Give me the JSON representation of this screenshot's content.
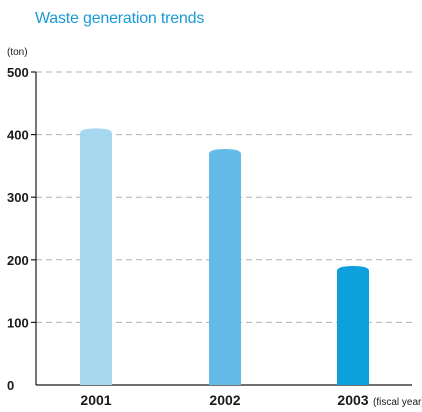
{
  "title": "Waste generation trends",
  "chart_data": {
    "type": "bar",
    "title": "Waste generation trends",
    "ylabel": "(ton)",
    "xlabel": "(fiscal year)",
    "categories": [
      "2001",
      "2002",
      "2003"
    ],
    "values": [
      410,
      377,
      190
    ],
    "ylim": [
      0,
      500
    ],
    "yticks": [
      "0",
      "100",
      "200",
      "300",
      "400",
      "500"
    ],
    "grid": true,
    "bar_colors": [
      "#a8d7f0",
      "#64bbe8",
      "#0ea0dc"
    ]
  }
}
